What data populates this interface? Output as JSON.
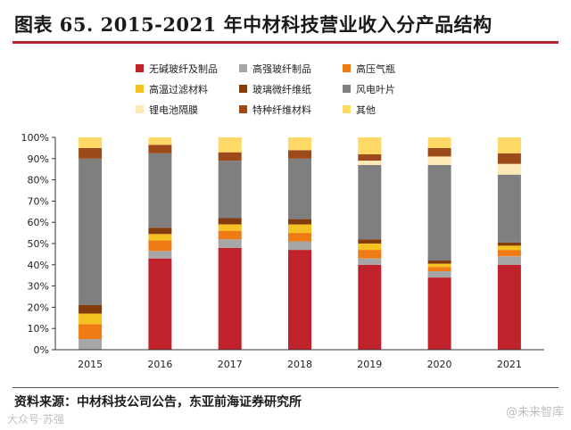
{
  "chart_data": {
    "type": "bar",
    "stacked": true,
    "title": "图表 65. 2015-2021 年中材科技营业收入分产品结构",
    "categories": [
      "2015",
      "2016",
      "2017",
      "2018",
      "2019",
      "2020",
      "2021"
    ],
    "ylim": [
      0,
      100
    ],
    "yticks": [
      "0%",
      "10%",
      "20%",
      "30%",
      "40%",
      "50%",
      "60%",
      "70%",
      "80%",
      "90%",
      "100%"
    ],
    "legend_position": "top",
    "series": [
      {
        "name": "无碱玻纤及制品",
        "color": "#c0222c",
        "values": [
          0,
          43,
          48,
          47,
          40,
          34,
          40
        ]
      },
      {
        "name": "高强玻纤制品",
        "color": "#a6a6a6",
        "values": [
          5,
          3.5,
          4,
          4,
          3,
          3,
          4
        ]
      },
      {
        "name": "高压气瓶",
        "color": "#ee7b14",
        "values": [
          7,
          5,
          4,
          4,
          4,
          2,
          3
        ]
      },
      {
        "name": "高温过滤材料",
        "color": "#f5c221",
        "values": [
          5,
          3,
          3,
          4,
          3,
          1.5,
          2
        ]
      },
      {
        "name": "玻璃微纤维纸",
        "color": "#843c0c",
        "values": [
          4,
          3,
          3,
          2.5,
          2,
          1.5,
          1.5
        ]
      },
      {
        "name": "风电叶片",
        "color": "#7f7f7f",
        "values": [
          69,
          35,
          27,
          28.5,
          35,
          45,
          32
        ]
      },
      {
        "name": "锂电池隔膜",
        "color": "#fde9b5",
        "values": [
          0,
          0,
          0,
          0,
          2,
          4,
          5
        ]
      },
      {
        "name": "特种纤维材料",
        "color": "#9c4a1a",
        "values": [
          5,
          4,
          4,
          4,
          3,
          4,
          5
        ]
      },
      {
        "name": "其他",
        "color": "#ffd966",
        "values": [
          5,
          3.5,
          7,
          6,
          8,
          5,
          7.5
        ]
      }
    ]
  },
  "source_text": "资料来源：中材科技公司公告，东亚前海证券研究所",
  "watermark_left": "大众号·苏强",
  "watermark_right": "@未来智库"
}
